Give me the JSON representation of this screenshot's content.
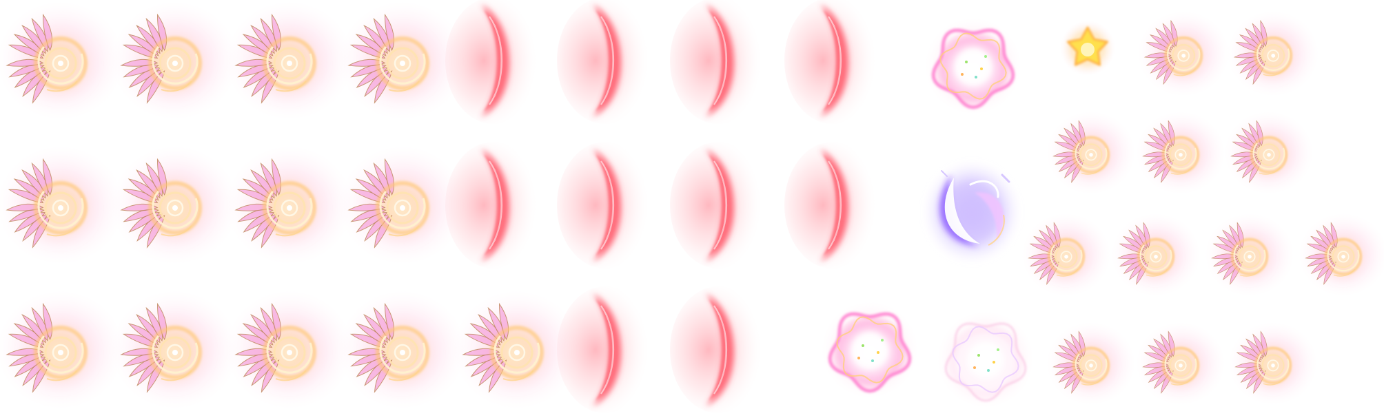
{
  "sprite_sheet": {
    "background": "#ffffff",
    "palette": {
      "gold_glow": "#ffc06a",
      "gold_core": "#fff1c9",
      "pink_feather": "#f6a6dc",
      "feather_outline": "#b8804e",
      "red_crescent": "#ff4f62",
      "red_glow": "#ffb2ba",
      "rose_glow": "#ff9ec9",
      "yellow_star": "#ffe04d",
      "violet_glow": "#9b6bff",
      "violet_core": "#6a2bff"
    },
    "sprites": [
      {
        "id": "wing-crescent-frame-1",
        "kind": "wing_crescent"
      },
      {
        "id": "wing-crescent-frame-2",
        "kind": "wing_crescent"
      },
      {
        "id": "wing-crescent-frame-3",
        "kind": "wing_crescent"
      },
      {
        "id": "wing-crescent-frame-4",
        "kind": "wing_crescent"
      },
      {
        "id": "red-crescent-frame-1",
        "kind": "red_crescent"
      },
      {
        "id": "red-crescent-frame-2",
        "kind": "red_crescent"
      },
      {
        "id": "red-crescent-frame-3",
        "kind": "red_crescent"
      },
      {
        "id": "red-crescent-frame-4",
        "kind": "red_crescent"
      },
      {
        "id": "pink-burst-frame-1",
        "kind": "burst",
        "variant": "pink"
      },
      {
        "id": "yellow-star",
        "kind": "star"
      },
      {
        "id": "small-wing-crescent-1",
        "kind": "wing_crescent"
      },
      {
        "id": "small-wing-crescent-2",
        "kind": "wing_crescent"
      },
      {
        "id": "wing-crescent-frame-5",
        "kind": "wing_crescent"
      },
      {
        "id": "wing-crescent-frame-6",
        "kind": "wing_crescent"
      },
      {
        "id": "wing-crescent-frame-7",
        "kind": "wing_crescent"
      },
      {
        "id": "wing-crescent-frame-8",
        "kind": "wing_crescent"
      },
      {
        "id": "red-crescent-frame-5",
        "kind": "red_crescent"
      },
      {
        "id": "red-crescent-frame-6",
        "kind": "red_crescent"
      },
      {
        "id": "red-crescent-frame-7",
        "kind": "red_crescent"
      },
      {
        "id": "red-crescent-frame-8",
        "kind": "red_crescent"
      },
      {
        "id": "violet-swirl",
        "kind": "violet_swirl"
      },
      {
        "id": "small-wing-crescent-3",
        "kind": "wing_crescent"
      },
      {
        "id": "small-wing-crescent-4",
        "kind": "wing_crescent"
      },
      {
        "id": "small-wing-crescent-5",
        "kind": "wing_crescent"
      },
      {
        "id": "small-wing-crescent-6",
        "kind": "wing_crescent"
      },
      {
        "id": "small-wing-crescent-7",
        "kind": "wing_crescent"
      },
      {
        "id": "small-wing-crescent-8",
        "kind": "wing_crescent"
      },
      {
        "id": "small-wing-crescent-9",
        "kind": "wing_crescent"
      },
      {
        "id": "wing-crescent-frame-9",
        "kind": "wing_crescent"
      },
      {
        "id": "wing-crescent-frame-10",
        "kind": "wing_crescent"
      },
      {
        "id": "wing-crescent-frame-11",
        "kind": "wing_crescent"
      },
      {
        "id": "wing-crescent-frame-12",
        "kind": "wing_crescent"
      },
      {
        "id": "wing-crescent-frame-13",
        "kind": "wing_crescent"
      },
      {
        "id": "red-crescent-frame-9",
        "kind": "red_crescent"
      },
      {
        "id": "red-crescent-frame-10",
        "kind": "red_crescent"
      },
      {
        "id": "pink-burst-frame-2",
        "kind": "burst",
        "variant": "pink"
      },
      {
        "id": "pale-burst-frame",
        "kind": "burst",
        "variant": "pale"
      },
      {
        "id": "small-wing-crescent-10",
        "kind": "wing_crescent"
      },
      {
        "id": "small-wing-crescent-11",
        "kind": "wing_crescent"
      },
      {
        "id": "small-wing-crescent-12",
        "kind": "wing_crescent"
      }
    ]
  }
}
